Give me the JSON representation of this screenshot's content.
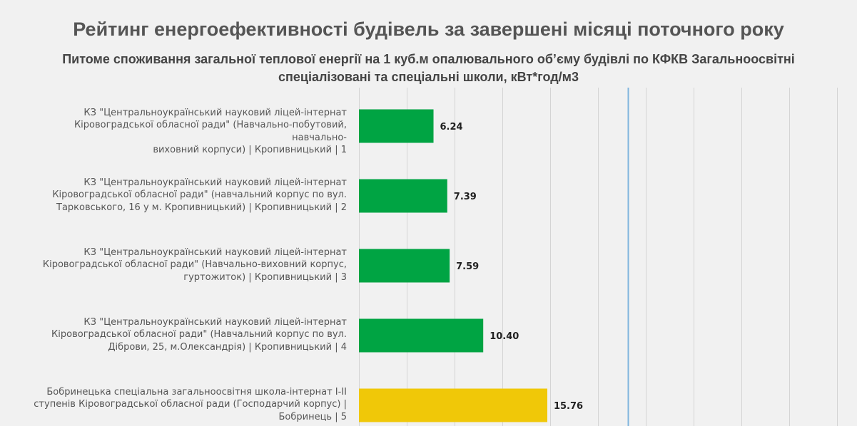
{
  "title": "Рейтинг енергоефективності будівель за завершені місяці поточного року",
  "subtitle": "Питоме споживання загальної теплової енергії на 1 куб.м опалювального об’єму будівлі по КФКВ Загальноосвітні спеціалізовані та спеціальні школи, кВт*год/м3",
  "chart_data": {
    "type": "bar",
    "orientation": "horizontal",
    "title": "Рейтинг енергоефективності будівель за завершені місяці поточного року",
    "subtitle": "Питоме споживання загальної теплової енергії на 1 куб.м опалювального об’єму будівлі по КФКВ Загальноосвітні спеціалізовані та спеціальні школи, кВт*год/м3",
    "categories": [
      "КЗ \"Центральноукраїнський науковий ліцей-інтернат Кіровоградської обласної ради\" (Навчально-побутовий, навчально-виховний корпуси) | Кропивницький | 1",
      "КЗ \"Центральноукраїнський науковий ліцей-інтернат Кіровоградської обласної ради\" (навчальний корпус по вул. Тарковського, 16 у м. Кропивницький) | Кропивницький | 2",
      "КЗ \"Центральноукраїнський науковий ліцей-інтернат Кіровоградської обласної ради\" (Навчально-виховний корпус, гуртожиток) | Кропивницький | 3",
      "КЗ \"Центральноукраїнський науковий ліцей-інтернат Кіровоградської обласної ради\" (Навчальний корпус по вул. Діброви, 25, м.Олександрія) | Кропивницький | 4",
      "Бобринецька спеціальна загальноосвітня школа-інтернат І-ІІ ступенів Кіровоградської обласної ради (Господарчий корпус) | Бобринець | 5"
    ],
    "label_lines": [
      [
        "КЗ \"Центральноукраїнський науковий ліцей-інтернат",
        "Кіровоградської обласної ради\" (Навчально-побутовий, навчально-",
        "виховний корпуси) | Кропивницький | 1"
      ],
      [
        "КЗ \"Центральноукраїнський науковий ліцей-інтернат",
        "Кіровоградської обласної ради\" (навчальний корпус по вул.",
        "Тарковського, 16 у м. Кропивницький) | Кропивницький | 2"
      ],
      [
        "КЗ \"Центральноукраїнський науковий ліцей-інтернат",
        "Кіровоградської обласної ради\" (Навчально-виховний корпус,",
        "гуртожиток) | Кропивницький | 3"
      ],
      [
        "КЗ \"Центральноукраїнський науковий ліцей-інтернат",
        "Кіровоградської обласної ради\" (Навчальний корпус по вул.",
        "Діброви, 25, м.Олександрія) | Кропивницький | 4"
      ],
      [
        "Бобринецька спеціальна загальноосвітня школа-інтернат І-ІІ",
        "ступенів Кіровоградської обласної ради (Господарчий корпус) |",
        "Бобринець | 5"
      ]
    ],
    "values": [
      6.24,
      7.39,
      7.59,
      10.4,
      15.76
    ],
    "value_labels": [
      "6.24",
      "7.39",
      "7.59",
      "10.40",
      "15.76"
    ],
    "bar_colors": [
      "#00a443",
      "#00a443",
      "#00a443",
      "#00a443",
      "#f0c808"
    ],
    "reference_line": 22.5,
    "reference_color": "#7fb5de",
    "xlim": [
      0,
      40
    ],
    "grid": true,
    "grid_color": "#d4d4d4",
    "label_color": "#555555"
  }
}
